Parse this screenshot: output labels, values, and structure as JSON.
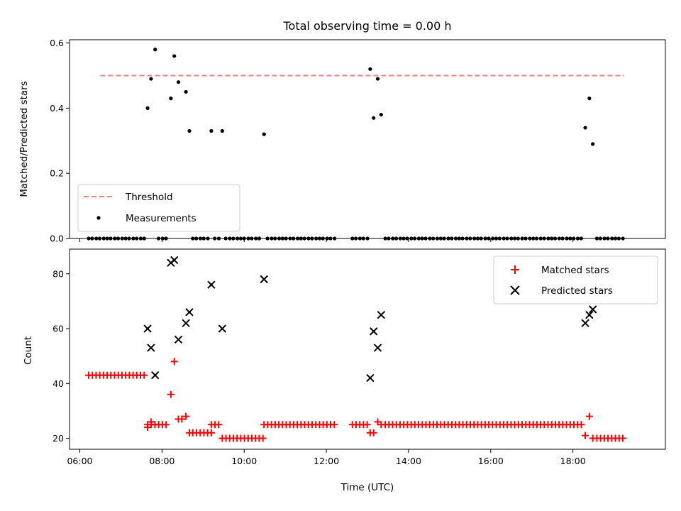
{
  "chart_data": [
    {
      "type": "scatter",
      "title": "Total observing time = 0.00 h",
      "xlabel": "",
      "ylabel": "Matched/Predicted stars",
      "xlim": [
        "05:45",
        "20:15"
      ],
      "ylim": [
        0,
        0.61
      ],
      "yticks": [
        "0.0",
        "0.2",
        "0.4",
        "0.6"
      ],
      "grid": false,
      "legend": "lower-left",
      "colors": {
        "threshold": "#f08080",
        "measurements": "#000000"
      },
      "series": [
        {
          "name": "Threshold",
          "style": "dashed-line",
          "x": [
            "06:30",
            "19:15"
          ],
          "y": [
            0.5,
            0.5
          ]
        },
        {
          "name": "Measurements",
          "style": "dot",
          "x": [
            "07:39",
            "07:44",
            "07:50",
            "08:13",
            "08:18",
            "08:24",
            "08:35",
            "08:40",
            "09:12",
            "09:28",
            "10:29",
            "13:04",
            "13:09",
            "13:15",
            "13:20",
            "18:18",
            "18:24",
            "18:29"
          ],
          "y": [
            0.4,
            0.49,
            0.58,
            0.43,
            0.56,
            0.48,
            0.45,
            0.33,
            0.33,
            0.33,
            0.32,
            0.52,
            0.37,
            0.49,
            0.38,
            0.34,
            0.43,
            0.29
          ]
        }
      ]
    },
    {
      "type": "scatter",
      "title": "",
      "xlabel": "Time (UTC)",
      "ylabel": "Count",
      "xlim": [
        "05:45",
        "20:15"
      ],
      "ylim": [
        16,
        89
      ],
      "xticks": [
        "06:00",
        "08:00",
        "10:00",
        "12:00",
        "14:00",
        "16:00",
        "18:00"
      ],
      "yticks": [
        "20",
        "40",
        "60",
        "80"
      ],
      "grid": false,
      "legend": "top-right",
      "colors": {
        "matched": "#ff0000",
        "predicted": "#000000"
      },
      "series": [
        {
          "name": "Matched stars",
          "marker": "plus",
          "segments": [
            {
              "from": "06:13",
              "to": "07:39",
              "y": 43
            },
            {
              "from": "07:39",
              "to": "08:08",
              "y": 25
            },
            {
              "from": "08:45",
              "to": "09:12",
              "y": 22
            },
            {
              "from": "09:12",
              "to": "09:28",
              "y": 25
            },
            {
              "from": "09:28",
              "to": "10:29",
              "y": 20
            },
            {
              "from": "10:29",
              "to": "12:12",
              "y": 25
            },
            {
              "from": "12:38",
              "to": "13:04",
              "y": 25
            },
            {
              "from": "13:26",
              "to": "18:13",
              "y": 25
            },
            {
              "from": "18:35",
              "to": "19:15",
              "y": 20
            }
          ],
          "points": [
            {
              "x": "07:39",
              "y": 24
            },
            {
              "x": "07:44",
              "y": 26
            },
            {
              "x": "08:13",
              "y": 36
            },
            {
              "x": "08:18",
              "y": 48
            },
            {
              "x": "08:24",
              "y": 27
            },
            {
              "x": "08:29",
              "y": 27
            },
            {
              "x": "08:35",
              "y": 28
            },
            {
              "x": "08:40",
              "y": 22
            },
            {
              "x": "13:04",
              "y": 22
            },
            {
              "x": "13:09",
              "y": 22
            },
            {
              "x": "13:15",
              "y": 26
            },
            {
              "x": "13:20",
              "y": 25
            },
            {
              "x": "18:18",
              "y": 21
            },
            {
              "x": "18:24",
              "y": 28
            },
            {
              "x": "18:29",
              "y": 20
            }
          ]
        },
        {
          "name": "Predicted stars",
          "marker": "x",
          "x": [
            "07:39",
            "07:44",
            "07:50",
            "08:13",
            "08:18",
            "08:24",
            "08:35",
            "08:40",
            "09:12",
            "09:28",
            "10:29",
            "13:04",
            "13:09",
            "13:15",
            "13:20",
            "18:18",
            "18:24",
            "18:29"
          ],
          "y": [
            60,
            53,
            43,
            84,
            85,
            56,
            62,
            66,
            76,
            60,
            78,
            42,
            59,
            53,
            65,
            62,
            65,
            67
          ]
        }
      ]
    }
  ]
}
